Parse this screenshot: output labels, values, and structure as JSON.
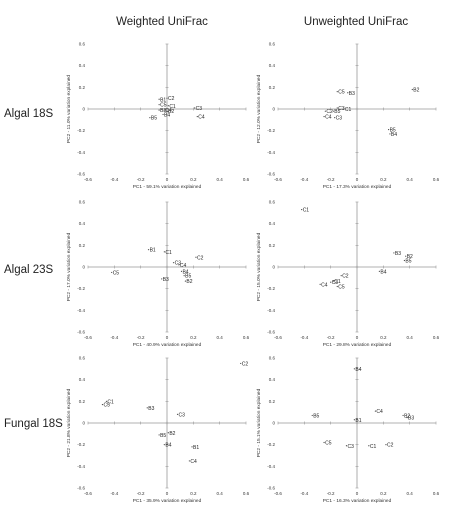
{
  "column_titles": [
    "Weighted UniFrac",
    "Unweighted UniFrac"
  ],
  "row_labels": [
    "Algal 18S",
    "Algal 23S",
    "Fungal 18S"
  ],
  "chart_data": [
    {
      "type": "scatter",
      "title": "",
      "row": "Algal 18S",
      "column": "Weighted UniFrac",
      "xlabel": "PC1 - 59.1% variation explained",
      "ylabel": "PC2 - 11.0% variation explained",
      "xlim": [
        -0.6,
        0.6
      ],
      "ylim": [
        -0.6,
        0.6
      ],
      "xticks": [
        "-0.6",
        "-0.4",
        "-0.2",
        "0",
        "0.2",
        "0.4",
        "0.6"
      ],
      "yticks": [
        "-0.6",
        "-0.4",
        "-0.2",
        "0",
        "0.2",
        "0.4",
        "0.6"
      ],
      "points": [
        {
          "label": "B1",
          "x": -0.06,
          "y": 0.09
        },
        {
          "label": "C2",
          "x": 0.0,
          "y": 0.1
        },
        {
          "label": "C5",
          "x": -0.06,
          "y": 0.04
        },
        {
          "label": "C1",
          "x": 0.01,
          "y": 0.03
        },
        {
          "label": "B3",
          "x": -0.06,
          "y": -0.01
        },
        {
          "label": "C4",
          "x": -0.02,
          "y": -0.01
        },
        {
          "label": "B2",
          "x": 0.0,
          "y": -0.02
        },
        {
          "label": "B4",
          "x": -0.03,
          "y": -0.05
        },
        {
          "label": "B5",
          "x": -0.13,
          "y": -0.08
        },
        {
          "label": "C3",
          "x": 0.21,
          "y": 0.01
        },
        {
          "label": "C4",
          "x": 0.23,
          "y": -0.07
        }
      ]
    },
    {
      "type": "scatter",
      "title": "",
      "row": "Algal 18S",
      "column": "Unweighted UniFrac",
      "xlabel": "PC1 - 17.3% variation explained",
      "ylabel": "PC2 - 12.0% variation explained",
      "xlim": [
        -0.6,
        0.6
      ],
      "ylim": [
        -0.6,
        0.6
      ],
      "xticks": [
        "-0.6",
        "-0.4",
        "-0.2",
        "0",
        "0.2",
        "0.4",
        "0.6"
      ],
      "yticks": [
        "-0.6",
        "-0.4",
        "-0.2",
        "0",
        "0.2",
        "0.4",
        "0.6"
      ],
      "points": [
        {
          "label": "C5",
          "x": -0.15,
          "y": 0.16
        },
        {
          "label": "B3",
          "x": -0.07,
          "y": 0.15
        },
        {
          "label": "B2",
          "x": 0.42,
          "y": 0.18
        },
        {
          "label": "C3",
          "x": -0.15,
          "y": 0.01
        },
        {
          "label": "C1",
          "x": -0.1,
          "y": 0.0
        },
        {
          "label": "C2",
          "x": -0.24,
          "y": -0.02
        },
        {
          "label": "B5",
          "x": -0.18,
          "y": -0.02
        },
        {
          "label": "C4",
          "x": -0.25,
          "y": -0.07
        },
        {
          "label": "C3",
          "x": -0.17,
          "y": -0.08
        },
        {
          "label": "B5",
          "x": 0.24,
          "y": -0.19
        },
        {
          "label": "B4",
          "x": 0.25,
          "y": -0.23
        }
      ]
    },
    {
      "type": "scatter",
      "title": "",
      "row": "Algal 23S",
      "column": "Weighted UniFrac",
      "xlabel": "PC1 - 40.9% variation explained",
      "ylabel": "PC2 - 17.0% variation explained",
      "xlim": [
        -0.6,
        0.6
      ],
      "ylim": [
        -0.6,
        0.6
      ],
      "xticks": [
        "-0.6",
        "-0.4",
        "-0.2",
        "0",
        "0.2",
        "0.4",
        "0.6"
      ],
      "yticks": [
        "-0.6",
        "-0.4",
        "-0.2",
        "0",
        "0.2",
        "0.4",
        "0.6"
      ],
      "points": [
        {
          "label": "B1",
          "x": -0.14,
          "y": 0.16
        },
        {
          "label": "C1",
          "x": -0.02,
          "y": 0.14
        },
        {
          "label": "C2",
          "x": 0.22,
          "y": 0.09
        },
        {
          "label": "C3",
          "x": 0.05,
          "y": 0.04
        },
        {
          "label": "C4",
          "x": 0.09,
          "y": 0.02
        },
        {
          "label": "C5",
          "x": -0.42,
          "y": -0.05
        },
        {
          "label": "B4",
          "x": 0.11,
          "y": -0.04
        },
        {
          "label": "B5",
          "x": 0.13,
          "y": -0.08
        },
        {
          "label": "B3",
          "x": -0.04,
          "y": -0.11
        },
        {
          "label": "B2",
          "x": 0.14,
          "y": -0.13
        }
      ]
    },
    {
      "type": "scatter",
      "title": "",
      "row": "Algal 23S",
      "column": "Unweighted UniFrac",
      "xlabel": "PC1 - 29.8% variation explained",
      "ylabel": "PC2 - 15.0% variation explained",
      "xlim": [
        -0.6,
        0.6
      ],
      "ylim": [
        -0.6,
        0.6
      ],
      "xticks": [
        "-0.6",
        "-0.4",
        "-0.2",
        "0",
        "0.2",
        "0.4",
        "0.6"
      ],
      "yticks": [
        "-0.6",
        "-0.4",
        "-0.2",
        "0",
        "0.2",
        "0.4",
        "0.6"
      ],
      "points": [
        {
          "label": "C1",
          "x": -0.42,
          "y": 0.53
        },
        {
          "label": "B3",
          "x": 0.28,
          "y": 0.13
        },
        {
          "label": "B2",
          "x": 0.37,
          "y": 0.1
        },
        {
          "label": "B5",
          "x": 0.36,
          "y": 0.06
        },
        {
          "label": "B4",
          "x": 0.17,
          "y": -0.04
        },
        {
          "label": "C2",
          "x": -0.12,
          "y": -0.08
        },
        {
          "label": "C4",
          "x": -0.28,
          "y": -0.16
        },
        {
          "label": "C3",
          "x": -0.2,
          "y": -0.14
        },
        {
          "label": "C1",
          "x": -0.18,
          "y": -0.13
        },
        {
          "label": "C5",
          "x": -0.15,
          "y": -0.18
        }
      ]
    },
    {
      "type": "scatter",
      "title": "",
      "row": "Fungal 18S",
      "column": "Weighted UniFrac",
      "xlabel": "PC1 - 35.9% variation explained",
      "ylabel": "PC2 - 21.8% variation explained",
      "xlim": [
        -0.6,
        0.6
      ],
      "ylim": [
        -0.6,
        0.6
      ],
      "xticks": [
        "-0.6",
        "-0.4",
        "-0.2",
        "0",
        "0.2",
        "0.4",
        "0.6"
      ],
      "yticks": [
        "-0.6",
        "-0.4",
        "-0.2",
        "0",
        "0.2",
        "0.4",
        "0.6"
      ],
      "points": [
        {
          "label": "C2",
          "x": 0.56,
          "y": 0.55
        },
        {
          "label": "C1",
          "x": -0.46,
          "y": 0.2
        },
        {
          "label": "C5",
          "x": -0.49,
          "y": 0.17
        },
        {
          "label": "B3",
          "x": -0.15,
          "y": 0.14
        },
        {
          "label": "C3",
          "x": 0.08,
          "y": 0.08
        },
        {
          "label": "B2",
          "x": 0.01,
          "y": -0.09
        },
        {
          "label": "B5",
          "x": -0.06,
          "y": -0.11
        },
        {
          "label": "B4",
          "x": -0.02,
          "y": -0.2
        },
        {
          "label": "B1",
          "x": 0.19,
          "y": -0.22
        },
        {
          "label": "C4",
          "x": 0.17,
          "y": -0.35
        }
      ]
    },
    {
      "type": "scatter",
      "title": "",
      "row": "Fungal 18S",
      "column": "Unweighted UniFrac",
      "xlabel": "PC1 - 16.3% variation explained",
      "ylabel": "PC2 - 15.1% variation explained",
      "xlim": [
        -0.6,
        0.6
      ],
      "ylim": [
        -0.6,
        0.6
      ],
      "xticks": [
        "-0.6",
        "-0.4",
        "-0.2",
        "0",
        "0.2",
        "0.4",
        "0.6"
      ],
      "yticks": [
        "-0.6",
        "-0.4",
        "-0.2",
        "0",
        "0.2",
        "0.4",
        "0.6"
      ],
      "points": [
        {
          "label": "B4",
          "x": -0.02,
          "y": 0.5
        },
        {
          "label": "C4",
          "x": 0.14,
          "y": 0.11
        },
        {
          "label": "B5",
          "x": -0.34,
          "y": 0.07
        },
        {
          "label": "B2",
          "x": 0.35,
          "y": 0.07
        },
        {
          "label": "B3",
          "x": 0.38,
          "y": 0.05
        },
        {
          "label": "B1",
          "x": -0.02,
          "y": 0.03
        },
        {
          "label": "C5",
          "x": -0.25,
          "y": -0.18
        },
        {
          "label": "C3",
          "x": -0.08,
          "y": -0.21
        },
        {
          "label": "C1",
          "x": 0.09,
          "y": -0.21
        },
        {
          "label": "C2",
          "x": 0.22,
          "y": -0.2
        }
      ]
    }
  ]
}
